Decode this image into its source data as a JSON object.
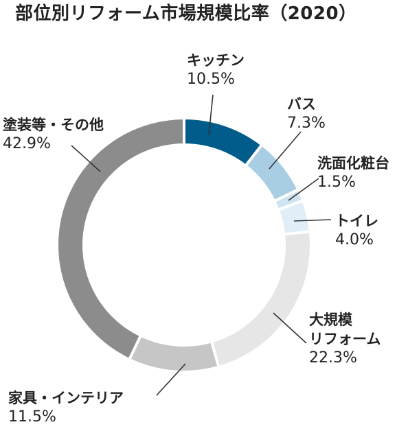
{
  "chart_data": {
    "type": "pie",
    "title": "部位別リフォーム市場規模比率（2020）",
    "unit": "%",
    "slices": [
      {
        "name": "キッチン",
        "value": 10.5,
        "value_label": "10.5%",
        "color": "#005c8a"
      },
      {
        "name": "バス",
        "value": 7.3,
        "value_label": "7.3%",
        "color": "#a9cde3"
      },
      {
        "name": "洗面化粧台",
        "value": 1.5,
        "value_label": "1.5%",
        "color": "#cfe4f1"
      },
      {
        "name": "トイレ",
        "value": 4.0,
        "value_label": "4.0%",
        "color": "#e1eef7"
      },
      {
        "name": "大規模リフォーム",
        "value": 22.3,
        "value_label": "22.3%",
        "color": "#e6e6e6"
      },
      {
        "name": "家具・インテリア",
        "value": 11.5,
        "value_label": "11.5%",
        "color": "#c6c6c6"
      },
      {
        "name": "塗装等・その他",
        "value": 42.9,
        "value_label": "42.9%",
        "color": "#8c8c8c"
      }
    ]
  },
  "labels": {
    "kitchen": "キッチン",
    "bath": "バス",
    "washstand": "洗面化粧台",
    "toilet": "トイレ",
    "large_line1": "大規模",
    "large_line2": "リフォーム",
    "furniture": "家具・インテリア",
    "painting": "塗装等・その他"
  }
}
